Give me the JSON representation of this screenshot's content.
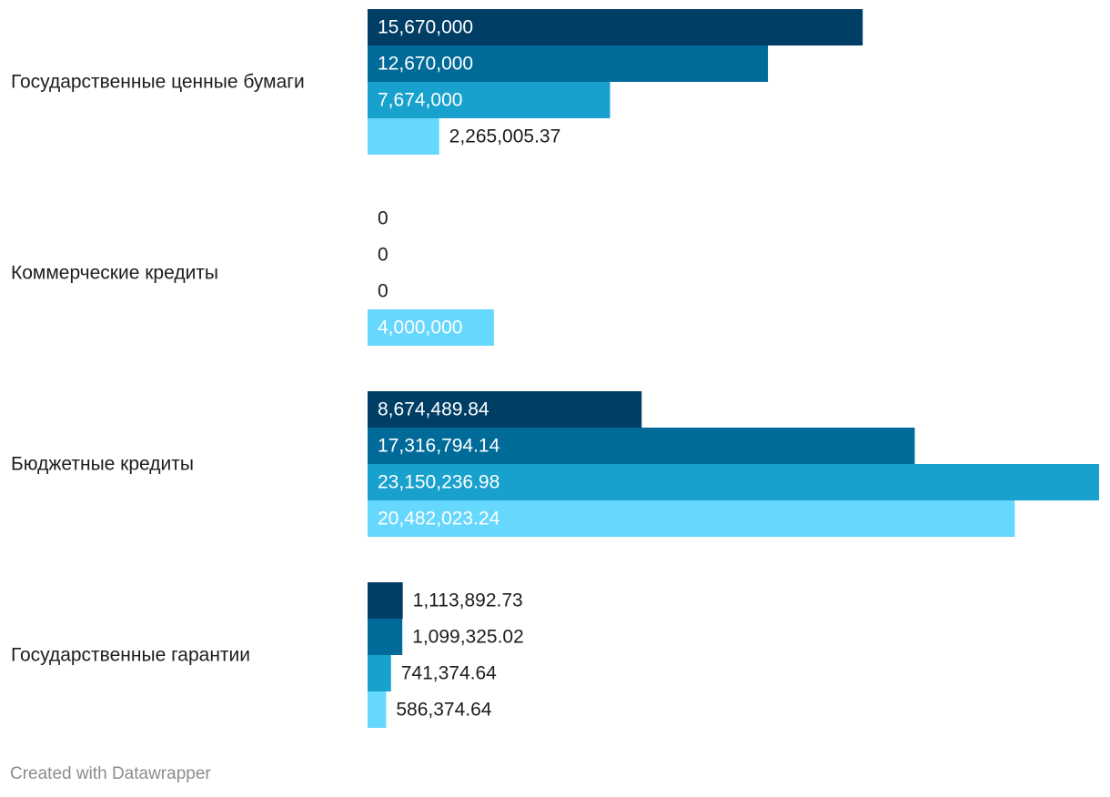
{
  "chart_data": {
    "type": "bar",
    "orientation": "horizontal",
    "categories": [
      "Государственные ценные бумаги",
      "Коммерческие кредиты",
      "Бюджетные кредиты",
      "Государственные гарантии"
    ],
    "series": [
      {
        "color": "#003e66",
        "values": [
          15670000,
          0,
          8674489.84,
          1113892.73
        ],
        "labels": [
          "15,670,000",
          "0",
          "8,674,489.84",
          "1,113,892.73"
        ]
      },
      {
        "color": "#006b99",
        "values": [
          12670000,
          0,
          17316794.14,
          1099325.02
        ],
        "labels": [
          "12,670,000",
          "0",
          "17,316,794.14",
          "1,099,325.02"
        ]
      },
      {
        "color": "#18a1cd",
        "values": [
          7674000,
          0,
          23150236.98,
          741374.64
        ],
        "labels": [
          "7,674,000",
          "0",
          "23,150,236.98",
          "741,374.64"
        ]
      },
      {
        "color": "#66d7fd",
        "values": [
          2265005.37,
          4000000,
          20482023.24,
          586374.64
        ],
        "labels": [
          "2,265,005.37",
          "4,000,000",
          "20,482,023.24",
          "586,374.64"
        ]
      }
    ],
    "xlim": [
      0,
      23150236.98
    ],
    "title": "",
    "xlabel": "",
    "ylabel": "",
    "grid": false,
    "legend": "none"
  },
  "footer": {
    "credit": "Created with Datawrapper"
  }
}
